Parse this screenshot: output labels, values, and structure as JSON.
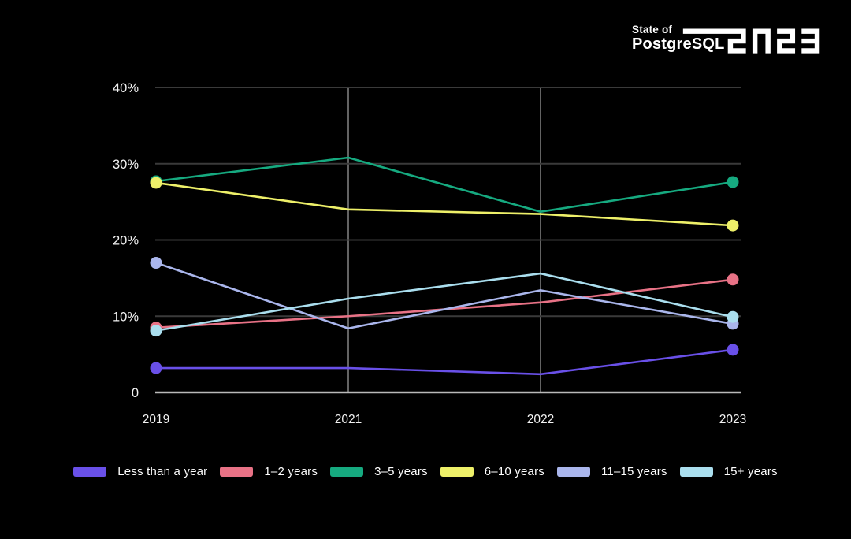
{
  "logo": {
    "line1": "State of",
    "line2": "PostgreSQL",
    "year": "2023"
  },
  "chart_data": {
    "type": "line",
    "title": "",
    "categories": [
      "2019",
      "2021",
      "2022",
      "2023"
    ],
    "xlabel": "",
    "ylabel": "",
    "ylim": [
      0,
      40
    ],
    "y_ticks": [
      "40%",
      "30%",
      "20%",
      "10%",
      "0"
    ],
    "y_tick_values": [
      40,
      30,
      20,
      10,
      0
    ],
    "grid": "horizontal-and-inner-vertical",
    "markers": "endpoints-only",
    "legend_position": "bottom",
    "colors": {
      "background": "#000000",
      "grid_line": "#3a3a3a",
      "vertical_grid_line": "#636363",
      "axis_line": "#b9b9b9",
      "tick_text": "#f2f2f2"
    },
    "series": [
      {
        "name": "Less than a year",
        "color": "#6950e8",
        "values": [
          3.2,
          3.2,
          2.4,
          5.6
        ]
      },
      {
        "name": "1–2 years",
        "color": "#e87286",
        "values": [
          8.5,
          10.0,
          11.8,
          14.8
        ]
      },
      {
        "name": "3–5 years",
        "color": "#16aa80",
        "values": [
          27.7,
          30.8,
          23.7,
          27.6
        ]
      },
      {
        "name": "6–10 years",
        "color": "#eef069",
        "values": [
          27.5,
          24.0,
          23.4,
          21.9
        ]
      },
      {
        "name": "11–15 years",
        "color": "#aab6ec",
        "values": [
          17.0,
          8.4,
          13.4,
          9.0
        ]
      },
      {
        "name": "15+ years",
        "color": "#aadeee",
        "values": [
          8.1,
          12.3,
          15.6,
          9.9
        ]
      }
    ]
  }
}
